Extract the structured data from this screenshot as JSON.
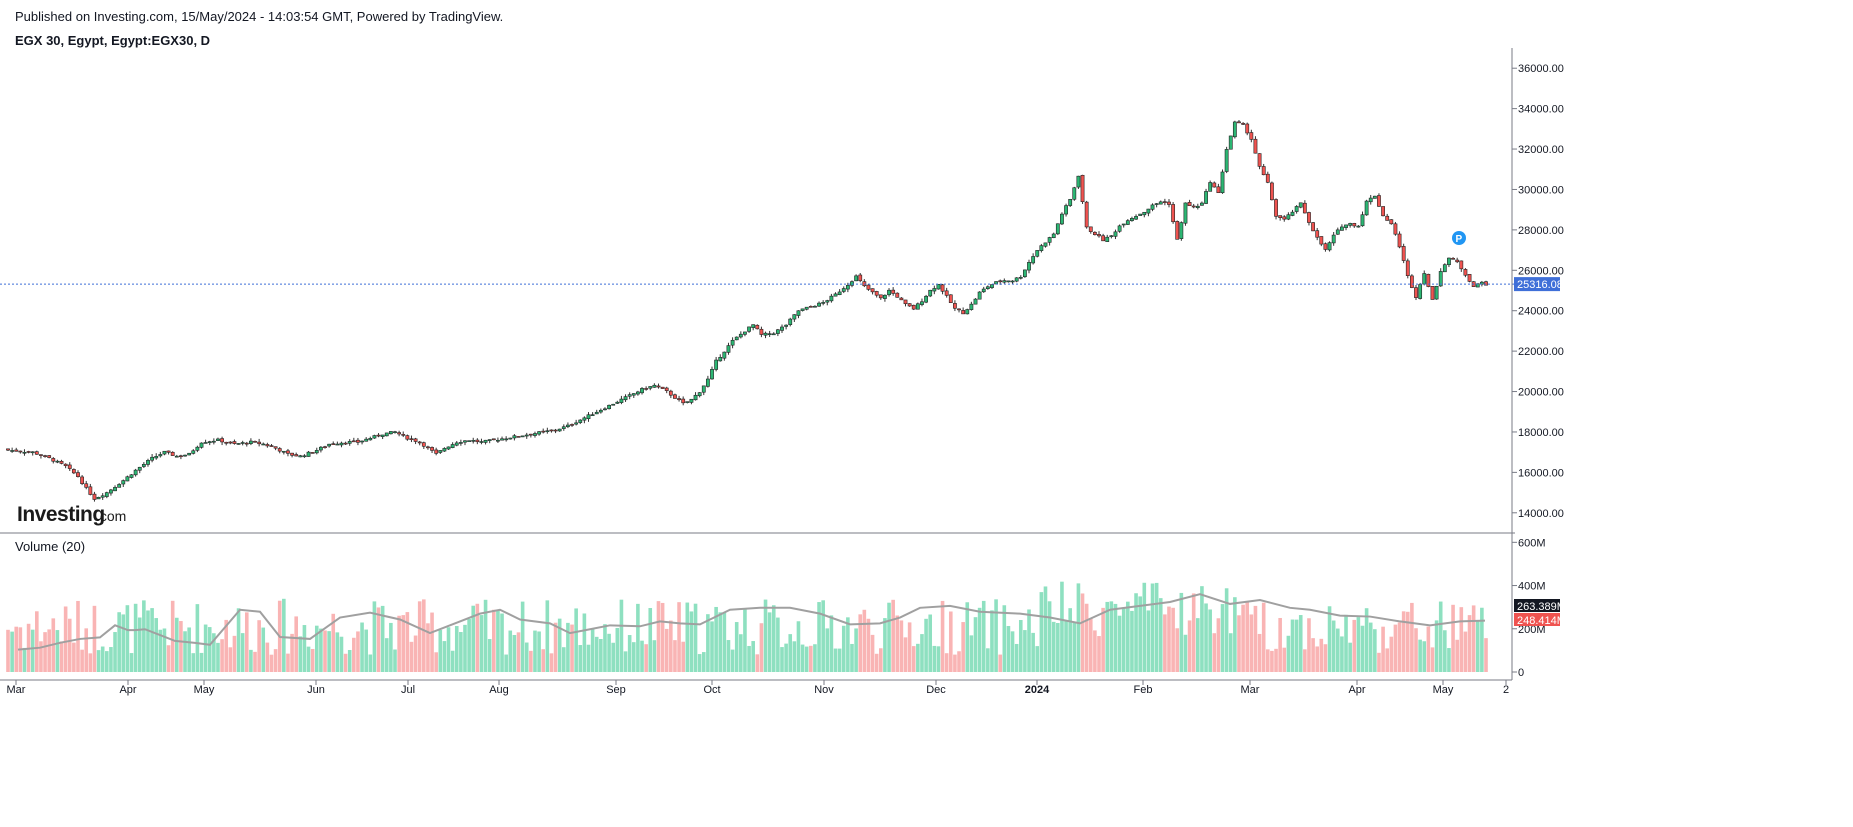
{
  "header": {
    "published": "Published on Investing.com, 15/May/2024 - 14:03:54 GMT, Powered by TradingView.",
    "symbol": "EGX 30, Egypt, Egypt:EGX30, D"
  },
  "logo": {
    "main": "Investing",
    "suffix": ".com"
  },
  "colors": {
    "up": "#26a69a",
    "up_fill": "#2cb673",
    "down": "#ef5350",
    "vol_up": "#8ee0c0",
    "vol_down": "#f9b4b4",
    "ma": "#a0a0a0",
    "last_price": "#3f6fd8"
  },
  "chart_data": [
    {
      "type": "candlestick",
      "ylim": [
        13000,
        37000
      ],
      "yticks": [
        "36000.00",
        "34000.00",
        "32000.00",
        "30000.00",
        "28000.00",
        "26000.00",
        "24000.00",
        "22000.00",
        "20000.00",
        "18000.00",
        "16000.00",
        "14000.00"
      ],
      "ytick_values": [
        36000,
        34000,
        32000,
        30000,
        28000,
        26000,
        24000,
        22000,
        20000,
        18000,
        16000,
        14000
      ],
      "xticks": [
        "Mar",
        "Apr",
        "May",
        "Jun",
        "Jul",
        "Aug",
        "Sep",
        "Oct",
        "Nov",
        "Dec",
        "2024",
        "Feb",
        "Mar",
        "Apr",
        "May",
        "2"
      ],
      "last_price": 25316.08,
      "last_price_label": "25316.08",
      "marker_label": "P",
      "close_path": [
        [
          0,
          17100
        ],
        [
          6,
          17000
        ],
        [
          10,
          16700
        ],
        [
          14,
          16300
        ],
        [
          17,
          15800
        ],
        [
          19,
          15200
        ],
        [
          21,
          14700
        ],
        [
          24,
          15000
        ],
        [
          28,
          15600
        ],
        [
          31,
          16100
        ],
        [
          35,
          16700
        ],
        [
          38,
          17000
        ],
        [
          41,
          16800
        ],
        [
          44,
          16900
        ],
        [
          47,
          17500
        ],
        [
          51,
          17600
        ],
        [
          55,
          17400
        ],
        [
          59,
          17500
        ],
        [
          62,
          17400
        ],
        [
          65,
          17200
        ],
        [
          68,
          16900
        ],
        [
          71,
          16800
        ],
        [
          75,
          17100
        ],
        [
          78,
          17400
        ],
        [
          82,
          17500
        ],
        [
          85,
          17500
        ],
        [
          88,
          17700
        ],
        [
          91,
          17900
        ],
        [
          94,
          18000
        ],
        [
          97,
          17700
        ],
        [
          100,
          17500
        ],
        [
          102,
          17200
        ],
        [
          104,
          16900
        ],
        [
          106,
          17200
        ],
        [
          109,
          17500
        ],
        [
          112,
          17600
        ],
        [
          115,
          17500
        ],
        [
          118,
          17600
        ],
        [
          121,
          17700
        ],
        [
          124,
          17800
        ],
        [
          127,
          17900
        ],
        [
          130,
          18000
        ],
        [
          133,
          18100
        ],
        [
          136,
          18300
        ],
        [
          139,
          18600
        ],
        [
          142,
          18900
        ],
        [
          145,
          19200
        ],
        [
          148,
          19500
        ],
        [
          151,
          19800
        ],
        [
          154,
          20100
        ],
        [
          157,
          20300
        ],
        [
          160,
          20000
        ],
        [
          162,
          19700
        ],
        [
          164,
          19400
        ],
        [
          166,
          19600
        ],
        [
          168,
          20000
        ],
        [
          170,
          20600
        ],
        [
          172,
          21500
        ],
        [
          174,
          22000
        ],
        [
          176,
          22500
        ],
        [
          179,
          23000
        ],
        [
          181,
          23300
        ],
        [
          183,
          22800
        ],
        [
          186,
          22900
        ],
        [
          189,
          23300
        ],
        [
          192,
          24000
        ],
        [
          195,
          24200
        ],
        [
          198,
          24400
        ],
        [
          201,
          24800
        ],
        [
          204,
          25300
        ],
        [
          206,
          25700
        ],
        [
          208,
          25200
        ],
        [
          210,
          24900
        ],
        [
          212,
          24600
        ],
        [
          214,
          25000
        ],
        [
          216,
          24700
        ],
        [
          218,
          24300
        ],
        [
          220,
          24100
        ],
        [
          222,
          24500
        ],
        [
          224,
          25000
        ],
        [
          226,
          25300
        ],
        [
          228,
          24700
        ],
        [
          230,
          24100
        ],
        [
          232,
          23900
        ],
        [
          234,
          24300
        ],
        [
          236,
          24900
        ],
        [
          238,
          25200
        ],
        [
          240,
          25400
        ],
        [
          242,
          25500
        ],
        [
          244,
          25500
        ],
        [
          246,
          25700
        ],
        [
          248,
          26400
        ],
        [
          250,
          27000
        ],
        [
          252,
          27400
        ],
        [
          254,
          27800
        ],
        [
          256,
          28800
        ],
        [
          258,
          29500
        ],
        [
          260,
          30700
        ],
        [
          262,
          28100
        ],
        [
          264,
          27800
        ],
        [
          266,
          27500
        ],
        [
          268,
          27700
        ],
        [
          270,
          28200
        ],
        [
          272,
          28500
        ],
        [
          274,
          28700
        ],
        [
          276,
          28900
        ],
        [
          278,
          29200
        ],
        [
          280,
          29400
        ],
        [
          282,
          29300
        ],
        [
          284,
          27500
        ],
        [
          286,
          29300
        ],
        [
          288,
          29100
        ],
        [
          290,
          29300
        ],
        [
          292,
          30400
        ],
        [
          294,
          29800
        ],
        [
          296,
          32000
        ],
        [
          298,
          33300
        ],
        [
          300,
          33200
        ],
        [
          302,
          32500
        ],
        [
          304,
          31100
        ],
        [
          306,
          30300
        ],
        [
          308,
          28700
        ],
        [
          310,
          28500
        ],
        [
          312,
          28900
        ],
        [
          314,
          29300
        ],
        [
          316,
          28400
        ],
        [
          318,
          27600
        ],
        [
          320,
          27000
        ],
        [
          322,
          27700
        ],
        [
          324,
          28200
        ],
        [
          326,
          28300
        ],
        [
          328,
          28200
        ],
        [
          330,
          29400
        ],
        [
          332,
          29700
        ],
        [
          334,
          28700
        ],
        [
          336,
          28300
        ],
        [
          338,
          27200
        ],
        [
          340,
          25700
        ],
        [
          342,
          24700
        ],
        [
          344,
          25900
        ],
        [
          346,
          24500
        ],
        [
          348,
          26000
        ],
        [
          350,
          26600
        ],
        [
          352,
          26400
        ],
        [
          354,
          25800
        ],
        [
          356,
          25200
        ],
        [
          358,
          25400
        ],
        [
          359,
          25316
        ]
      ]
    },
    {
      "type": "bar",
      "title": "Volume (20)",
      "ylim": [
        0,
        620
      ],
      "yticks": [
        "600M",
        "400M",
        "200M",
        "0"
      ],
      "ytick_values": [
        600,
        400,
        200,
        0
      ],
      "ma_label": "263.389M",
      "last_vol_label": "248.414M",
      "ma_value": 263.389,
      "last_vol_value": 248.414,
      "ma_path": [
        [
          18,
          115
        ],
        [
          40,
          125
        ],
        [
          60,
          150
        ],
        [
          80,
          170
        ],
        [
          100,
          178
        ],
        [
          115,
          240
        ],
        [
          128,
          215
        ],
        [
          135,
          215
        ],
        [
          145,
          220
        ],
        [
          160,
          190
        ],
        [
          175,
          160
        ],
        [
          195,
          150
        ],
        [
          210,
          140
        ],
        [
          240,
          320
        ],
        [
          260,
          310
        ],
        [
          280,
          180
        ],
        [
          310,
          170
        ],
        [
          340,
          280
        ],
        [
          370,
          305
        ],
        [
          400,
          270
        ],
        [
          430,
          200
        ],
        [
          460,
          260
        ],
        [
          480,
          300
        ],
        [
          500,
          320
        ],
        [
          520,
          270
        ],
        [
          550,
          250
        ],
        [
          570,
          200
        ],
        [
          590,
          220
        ],
        [
          610,
          240
        ],
        [
          640,
          235
        ],
        [
          660,
          260
        ],
        [
          680,
          250
        ],
        [
          700,
          245
        ],
        [
          730,
          320
        ],
        [
          760,
          330
        ],
        [
          790,
          330
        ],
        [
          820,
          300
        ],
        [
          850,
          245
        ],
        [
          880,
          250
        ],
        [
          900,
          280
        ],
        [
          920,
          330
        ],
        [
          950,
          340
        ],
        [
          980,
          310
        ],
        [
          1020,
          300
        ],
        [
          1050,
          280
        ],
        [
          1080,
          250
        ],
        [
          1110,
          320
        ],
        [
          1140,
          340
        ],
        [
          1170,
          360
        ],
        [
          1200,
          400
        ],
        [
          1230,
          350
        ],
        [
          1260,
          370
        ],
        [
          1290,
          330
        ],
        [
          1310,
          320
        ],
        [
          1340,
          290
        ],
        [
          1370,
          285
        ],
        [
          1400,
          260
        ],
        [
          1430,
          240
        ],
        [
          1460,
          260
        ],
        [
          1485,
          264
        ]
      ]
    }
  ]
}
